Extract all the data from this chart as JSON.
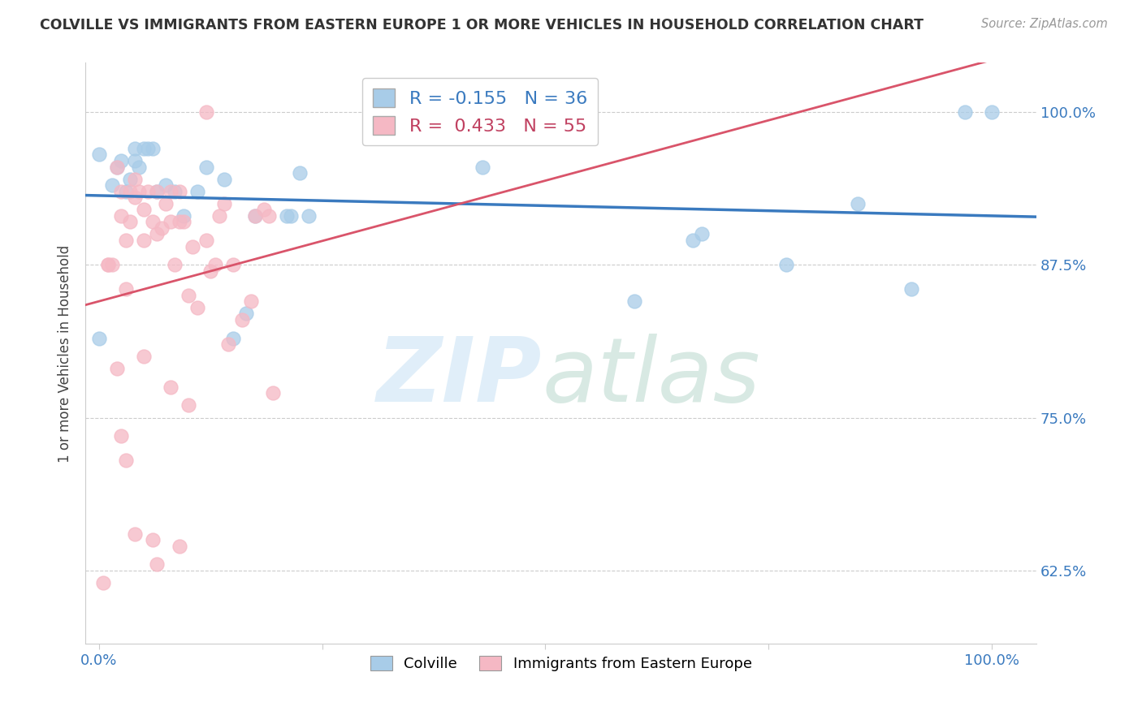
{
  "title": "COLVILLE VS IMMIGRANTS FROM EASTERN EUROPE 1 OR MORE VEHICLES IN HOUSEHOLD CORRELATION CHART",
  "source": "Source: ZipAtlas.com",
  "ylabel": "1 or more Vehicles in Household",
  "blue_label": "Colville",
  "pink_label": "Immigrants from Eastern Europe",
  "blue_R": -0.155,
  "blue_N": 36,
  "pink_R": 0.433,
  "pink_N": 55,
  "blue_color": "#a8cce8",
  "pink_color": "#f5b8c4",
  "blue_line_color": "#3a7abf",
  "pink_line_color": "#d9546a",
  "blue_points_x": [
    0.0,
    0.0,
    0.015,
    0.02,
    0.025,
    0.03,
    0.035,
    0.04,
    0.04,
    0.045,
    0.05,
    0.055,
    0.06,
    0.065,
    0.075,
    0.085,
    0.095,
    0.11,
    0.12,
    0.14,
    0.15,
    0.165,
    0.175,
    0.21,
    0.215,
    0.225,
    0.235,
    0.43,
    0.6,
    0.665,
    0.675,
    0.77,
    0.85,
    0.91,
    0.97,
    1.0
  ],
  "blue_points_y": [
    0.815,
    0.965,
    0.94,
    0.955,
    0.96,
    0.935,
    0.945,
    0.96,
    0.97,
    0.955,
    0.97,
    0.97,
    0.97,
    0.935,
    0.94,
    0.935,
    0.915,
    0.935,
    0.955,
    0.945,
    0.815,
    0.835,
    0.915,
    0.915,
    0.915,
    0.95,
    0.915,
    0.955,
    0.845,
    0.895,
    0.9,
    0.875,
    0.925,
    0.855,
    1.0,
    1.0
  ],
  "pink_points_x": [
    0.005,
    0.01,
    0.01,
    0.015,
    0.02,
    0.025,
    0.025,
    0.03,
    0.03,
    0.035,
    0.035,
    0.04,
    0.04,
    0.045,
    0.05,
    0.05,
    0.055,
    0.06,
    0.065,
    0.065,
    0.07,
    0.075,
    0.08,
    0.08,
    0.085,
    0.09,
    0.09,
    0.095,
    0.1,
    0.105,
    0.11,
    0.12,
    0.125,
    0.13,
    0.135,
    0.14,
    0.145,
    0.15,
    0.16,
    0.17,
    0.175,
    0.185,
    0.19,
    0.195,
    0.02,
    0.025,
    0.03,
    0.04,
    0.05,
    0.06,
    0.065,
    0.08,
    0.09,
    0.1,
    0.12
  ],
  "pink_points_y": [
    0.615,
    0.875,
    0.875,
    0.875,
    0.955,
    0.915,
    0.935,
    0.855,
    0.895,
    0.91,
    0.935,
    0.93,
    0.945,
    0.935,
    0.895,
    0.92,
    0.935,
    0.91,
    0.9,
    0.935,
    0.905,
    0.925,
    0.91,
    0.935,
    0.875,
    0.91,
    0.935,
    0.91,
    0.85,
    0.89,
    0.84,
    0.895,
    0.87,
    0.875,
    0.915,
    0.925,
    0.81,
    0.875,
    0.83,
    0.845,
    0.915,
    0.92,
    0.915,
    0.77,
    0.79,
    0.735,
    0.715,
    0.655,
    0.8,
    0.65,
    0.63,
    0.775,
    0.645,
    0.76,
    1.0
  ],
  "ymin": 0.565,
  "ymax": 1.04,
  "xmin": -0.015,
  "xmax": 1.05,
  "yticks": [
    0.625,
    0.75,
    0.875,
    1.0
  ],
  "ytick_labels": [
    "62.5%",
    "75.0%",
    "87.5%",
    "100.0%"
  ],
  "xticks": [
    0.0,
    0.25,
    0.5,
    0.75,
    1.0
  ],
  "xtick_labels_show": [
    "0.0%",
    "",
    "",
    "",
    "100.0%"
  ]
}
